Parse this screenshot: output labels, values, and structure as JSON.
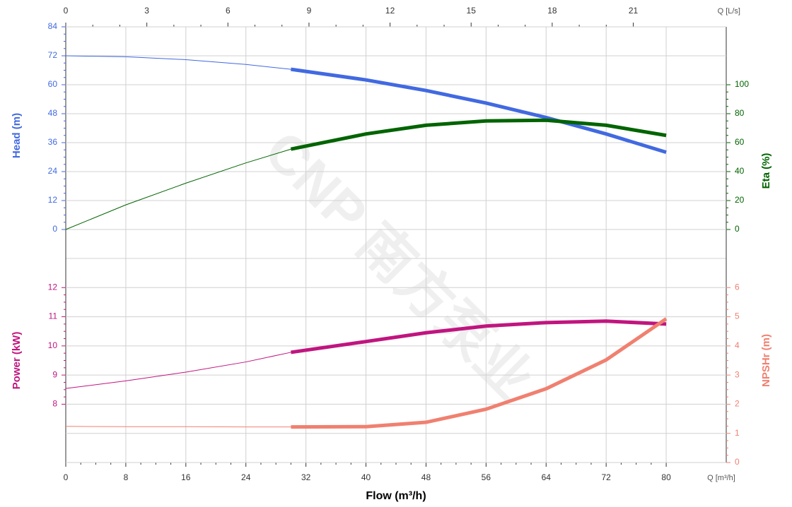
{
  "chart_data": {
    "type": "line",
    "watermark": "CNP 南方泵业",
    "x_label": "Flow (m³/h)",
    "x_unit": "Q [m³/h]",
    "x2_unit": "Q [L/s]",
    "x": [
      0,
      8,
      16,
      24,
      30,
      40,
      48,
      56,
      64,
      72,
      80
    ],
    "xlim": [
      0,
      88
    ],
    "xticks": [
      0,
      8,
      16,
      24,
      32,
      40,
      48,
      56,
      64,
      72,
      80
    ],
    "x2lim": [
      0,
      24.44
    ],
    "x2ticks": [
      0,
      3,
      6,
      9,
      12,
      15,
      18,
      21
    ],
    "operating_start": 30,
    "grid": true,
    "panels": [
      {
        "ylabel": "Head (m)",
        "ycolor": "#4169e1",
        "ylim": [
          -12,
          84
        ],
        "yticks": [
          0,
          12,
          24,
          36,
          48,
          60,
          72,
          84
        ],
        "y2label": "Eta (%)",
        "y2color": "#006400",
        "y2lim": [
          -20,
          140
        ],
        "y2ticks": [
          0,
          20,
          40,
          60,
          80,
          100
        ],
        "series": [
          {
            "name": "Head",
            "color": "#4169e1",
            "values": [
              72,
              71.6,
              70.4,
              68.4,
              66.4,
              62,
              57.6,
              52.4,
              46.4,
              39.6,
              32
            ]
          },
          {
            "name": "Eta",
            "color": "#006400",
            "axis": "y2",
            "values": [
              0,
              17,
              32,
              46,
              55.5,
              66,
              72,
              75,
              75.5,
              72,
              65
            ]
          }
        ]
      },
      {
        "ylabel": "Power (kW)",
        "ycolor": "#c0157f",
        "ylim": [
          6,
          13
        ],
        "yticks": [
          8,
          9,
          10,
          11,
          12
        ],
        "y2label": "NPSHr (m)",
        "y2color": "#f08070",
        "y2lim": [
          0,
          7
        ],
        "y2ticks": [
          0,
          1,
          2,
          3,
          4,
          5,
          6
        ],
        "series": [
          {
            "name": "Power",
            "color": "#c0157f",
            "values": [
              8.54,
              8.8,
              9.1,
              9.45,
              9.78,
              10.15,
              10.45,
              10.68,
              10.8,
              10.85,
              10.75
            ]
          },
          {
            "name": "NPSHr",
            "color": "#f08070",
            "axis": "y2",
            "values": [
              1.24,
              1.23,
              1.23,
              1.22,
              1.22,
              1.23,
              1.38,
              1.83,
              2.53,
              3.52,
              4.93
            ]
          }
        ]
      }
    ]
  }
}
